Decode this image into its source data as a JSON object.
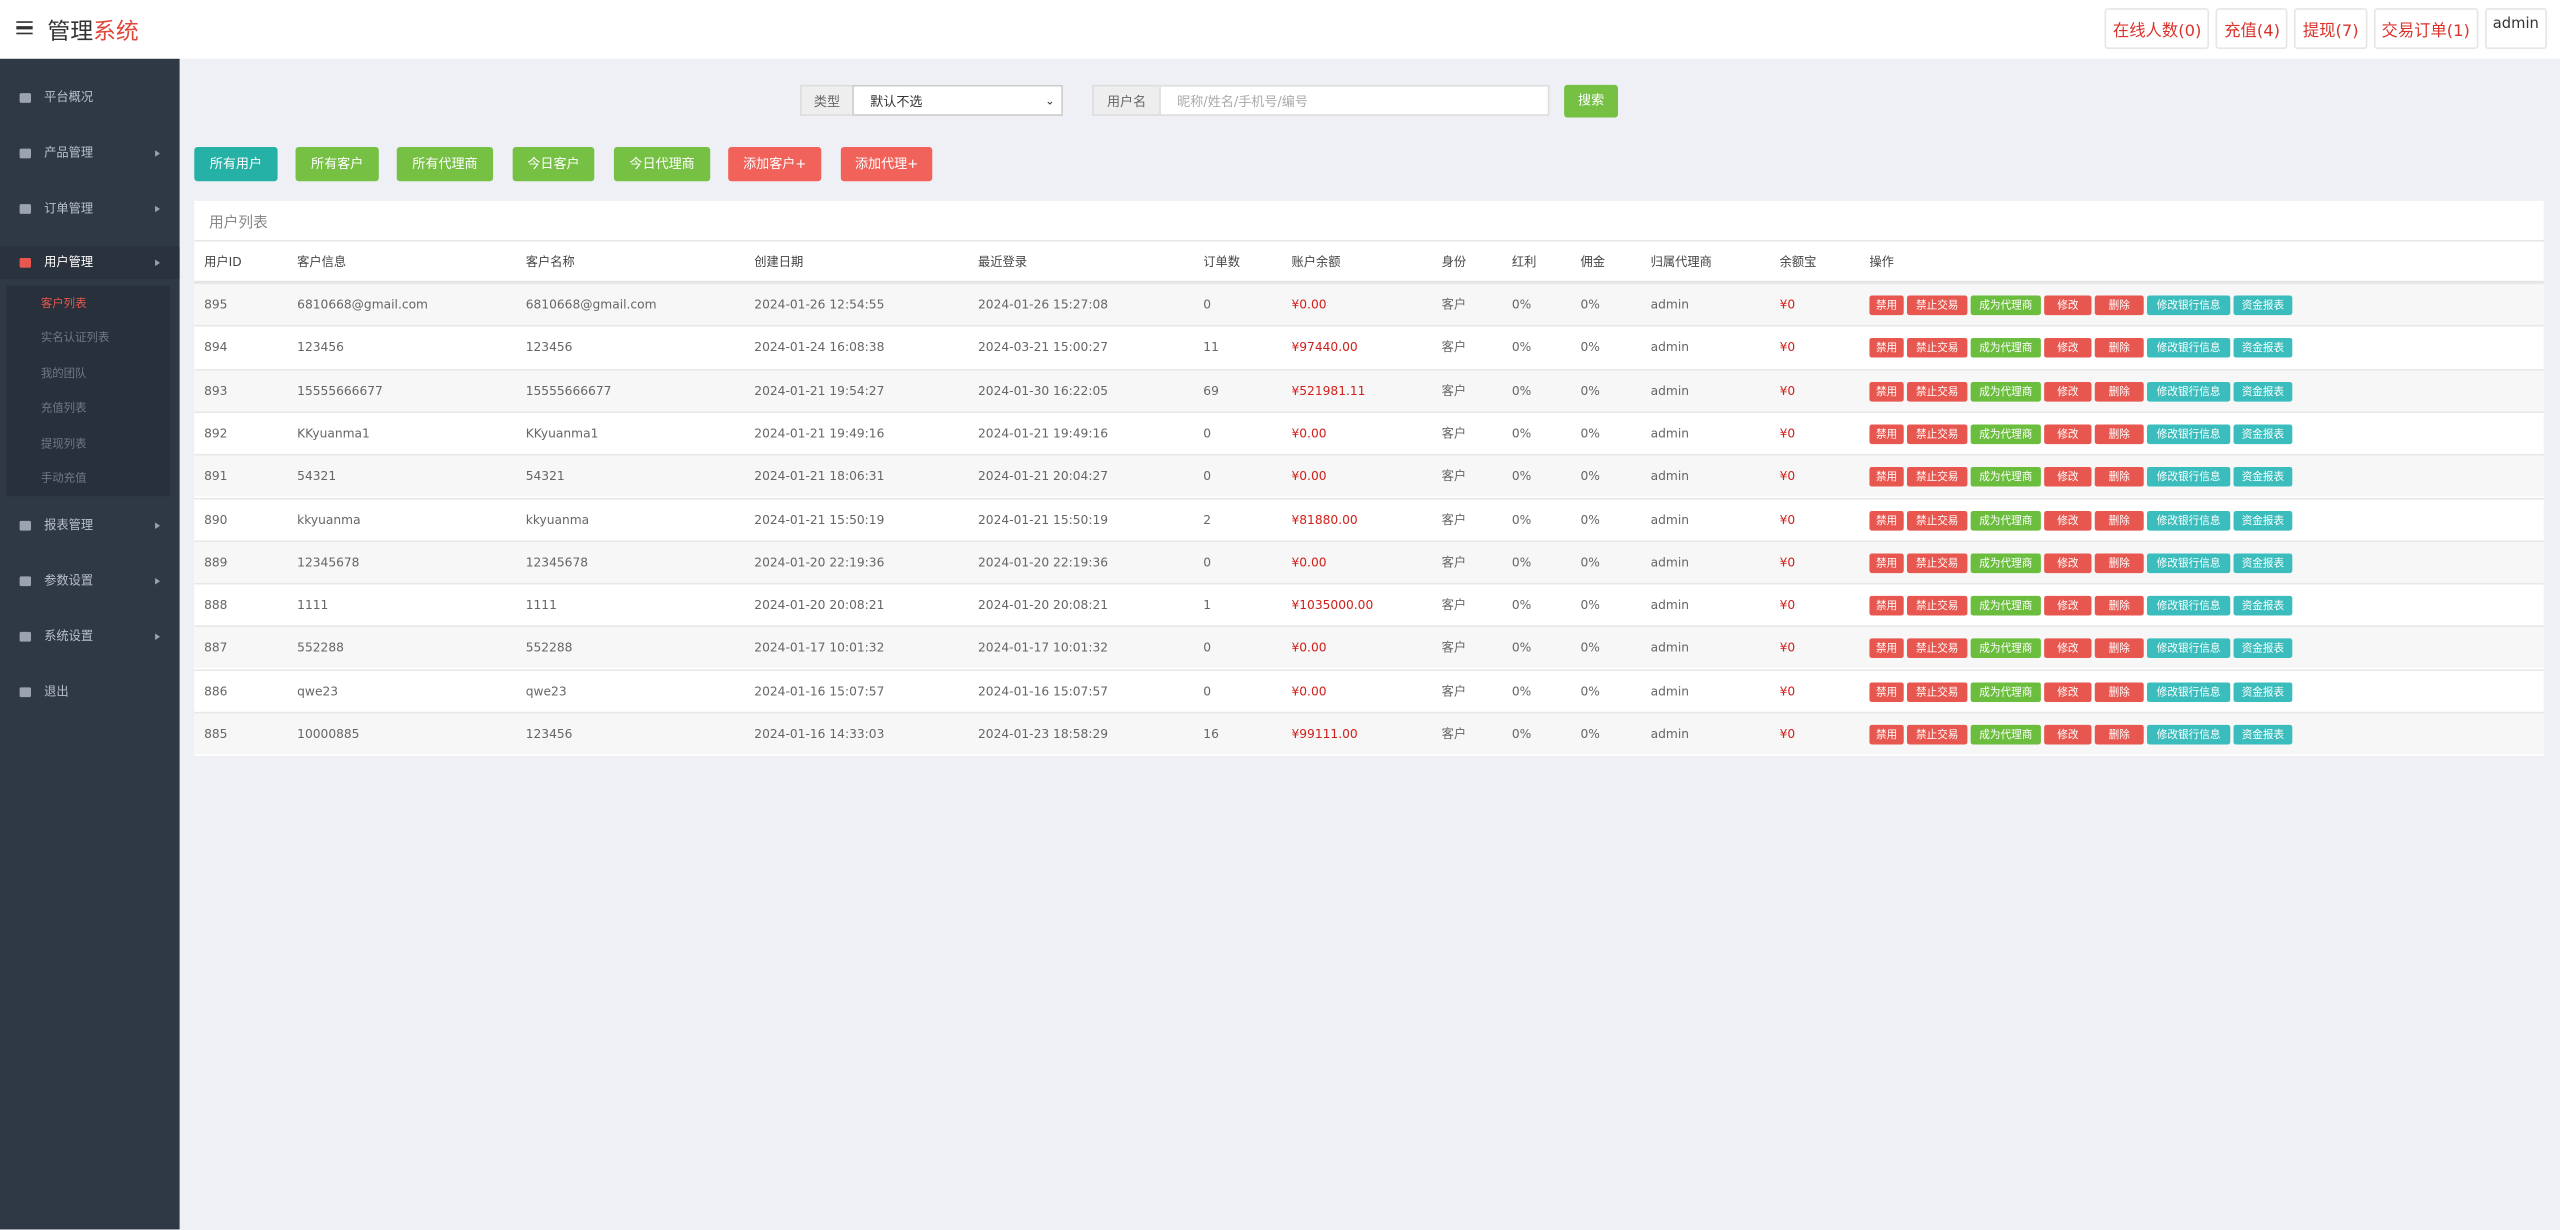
{
  "header": {
    "brand_main": "管理",
    "brand_accent": "系统",
    "links": [
      "在线人数(0)",
      "充值(4)",
      "提现(7)",
      "交易订单(1)",
      "admin"
    ]
  },
  "sidebar": {
    "menu": [
      "平台概况",
      "产品管理",
      "订单管理",
      "用户管理",
      "报表管理",
      "参数设置",
      "系统设置",
      "退出"
    ],
    "submenu": [
      "客户列表",
      "实名认证列表",
      "我的团队",
      "充值列表",
      "提现列表",
      "手动充值"
    ]
  },
  "search": {
    "type_label": "类型",
    "type_value": "默认不选",
    "user_label": "用户名",
    "user_placeholder": "昵称/姓名/手机号/编号",
    "button": "搜索"
  },
  "filters": [
    "所有用户",
    "所有客户",
    "所有代理商",
    "今日客户",
    "今日代理商",
    "添加客户+",
    "添加代理+"
  ],
  "table": {
    "title": "用户列表",
    "headers": [
      "用户ID",
      "客户信息",
      "客户名称",
      "创建日期",
      "最近登录",
      "订单数",
      "账户余额",
      "身份",
      "红利",
      "佣金",
      "归属代理商",
      "余额宝",
      "操作"
    ],
    "actions": [
      "禁用",
      "禁止交易",
      "成为代理商",
      "修改",
      "删除",
      "修改银行信息",
      "资金报表"
    ],
    "rows": [
      [
        "895",
        "6810668@gmail.com",
        "6810668@gmail.com",
        "2024-01-26 12:54:55",
        "2024-01-26 15:27:08",
        "0",
        "¥0.00",
        "客户",
        "0%",
        "0%",
        "admin",
        "¥0"
      ],
      [
        "894",
        "123456",
        "123456",
        "2024-01-24 16:08:38",
        "2024-03-21 15:00:27",
        "11",
        "¥97440.00",
        "客户",
        "0%",
        "0%",
        "admin",
        "¥0"
      ],
      [
        "893",
        "15555666677",
        "15555666677",
        "2024-01-21 19:54:27",
        "2024-01-30 16:22:05",
        "69",
        "¥521981.11",
        "客户",
        "0%",
        "0%",
        "admin",
        "¥0"
      ],
      [
        "892",
        "KKyuanma1",
        "KKyuanma1",
        "2024-01-21 19:49:16",
        "2024-01-21 19:49:16",
        "0",
        "¥0.00",
        "客户",
        "0%",
        "0%",
        "admin",
        "¥0"
      ],
      [
        "891",
        "54321",
        "54321",
        "2024-01-21 18:06:31",
        "2024-01-21 20:04:27",
        "0",
        "¥0.00",
        "客户",
        "0%",
        "0%",
        "admin",
        "¥0"
      ],
      [
        "890",
        "kkyuanma",
        "kkyuanma",
        "2024-01-21 15:50:19",
        "2024-01-21 15:50:19",
        "2",
        "¥81880.00",
        "客户",
        "0%",
        "0%",
        "admin",
        "¥0"
      ],
      [
        "889",
        "12345678",
        "12345678",
        "2024-01-20 22:19:36",
        "2024-01-20 22:19:36",
        "0",
        "¥0.00",
        "客户",
        "0%",
        "0%",
        "admin",
        "¥0"
      ],
      [
        "888",
        "1111",
        "1111",
        "2024-01-20 20:08:21",
        "2024-01-20 20:08:21",
        "1",
        "¥1035000.00",
        "客户",
        "0%",
        "0%",
        "admin",
        "¥0"
      ],
      [
        "887",
        "552288",
        "552288",
        "2024-01-17 10:01:32",
        "2024-01-17 10:01:32",
        "0",
        "¥0.00",
        "客户",
        "0%",
        "0%",
        "admin",
        "¥0"
      ],
      [
        "886",
        "qwe23",
        "qwe23",
        "2024-01-16 15:07:57",
        "2024-01-16 15:07:57",
        "0",
        "¥0.00",
        "客户",
        "0%",
        "0%",
        "admin",
        "¥0"
      ],
      [
        "885",
        "10000885",
        "123456",
        "2024-01-16 14:33:03",
        "2024-01-23 18:58:29",
        "16",
        "¥99111.00",
        "客户",
        "0%",
        "0%",
        "admin",
        "¥0"
      ]
    ]
  }
}
